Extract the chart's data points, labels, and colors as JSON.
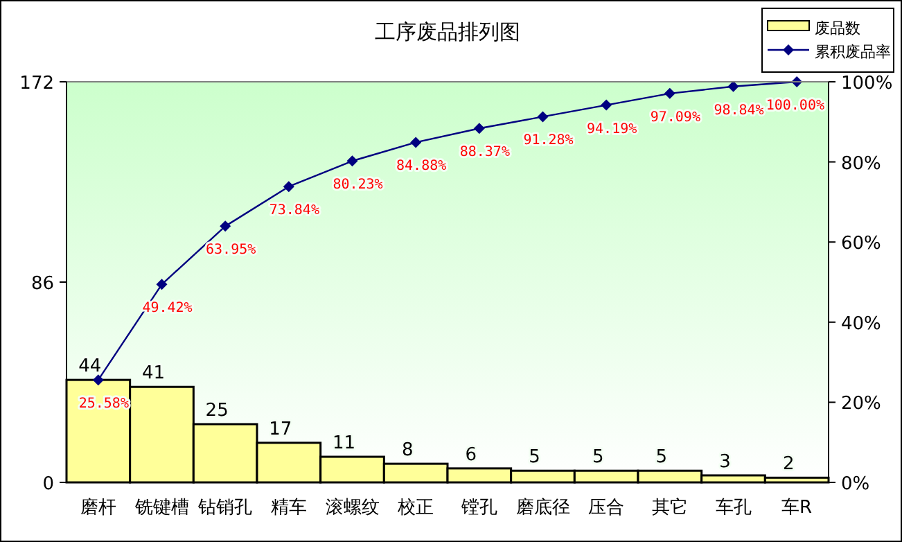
{
  "chart_data": {
    "type": "bar",
    "title": "工序废品排列图",
    "categories": [
      "磨杆",
      "铣键槽",
      "钻销孔",
      "精车",
      "滚螺纹",
      "校正",
      "镗孔",
      "磨底径",
      "压合",
      "其它",
      "车孔",
      "车R"
    ],
    "ylim": [
      0,
      172
    ],
    "yticks": [
      0,
      86,
      172
    ],
    "y2lim": [
      0,
      100
    ],
    "y2ticks": [
      {
        "value": 0,
        "label": "0%"
      },
      {
        "value": 20,
        "label": "20%"
      },
      {
        "value": 40,
        "label": "40%"
      },
      {
        "value": 60,
        "label": "60%"
      },
      {
        "value": 80,
        "label": "80%"
      },
      {
        "value": 100,
        "label": "100%"
      }
    ],
    "legend": "top right",
    "data_labels": true,
    "marker": "diamond",
    "series": [
      {
        "name": "废品数",
        "type": "bar",
        "color": "#ffff99",
        "values": [
          44,
          41,
          25,
          17,
          11,
          8,
          6,
          5,
          5,
          5,
          3,
          2
        ]
      },
      {
        "name": "累积废品率",
        "type": "line",
        "axis": "y2",
        "color": "#000080",
        "values": [
          25.58,
          49.42,
          63.95,
          73.84,
          80.23,
          84.88,
          88.37,
          91.28,
          94.19,
          97.09,
          98.84,
          100.0
        ],
        "value_labels": [
          "25.58%",
          "49.42%",
          "63.95%",
          "73.84%",
          "80.23%",
          "84.88%",
          "88.37%",
          "91.28%",
          "94.19%",
          "97.09%",
          "98.84%",
          "100.00%"
        ]
      }
    ]
  }
}
